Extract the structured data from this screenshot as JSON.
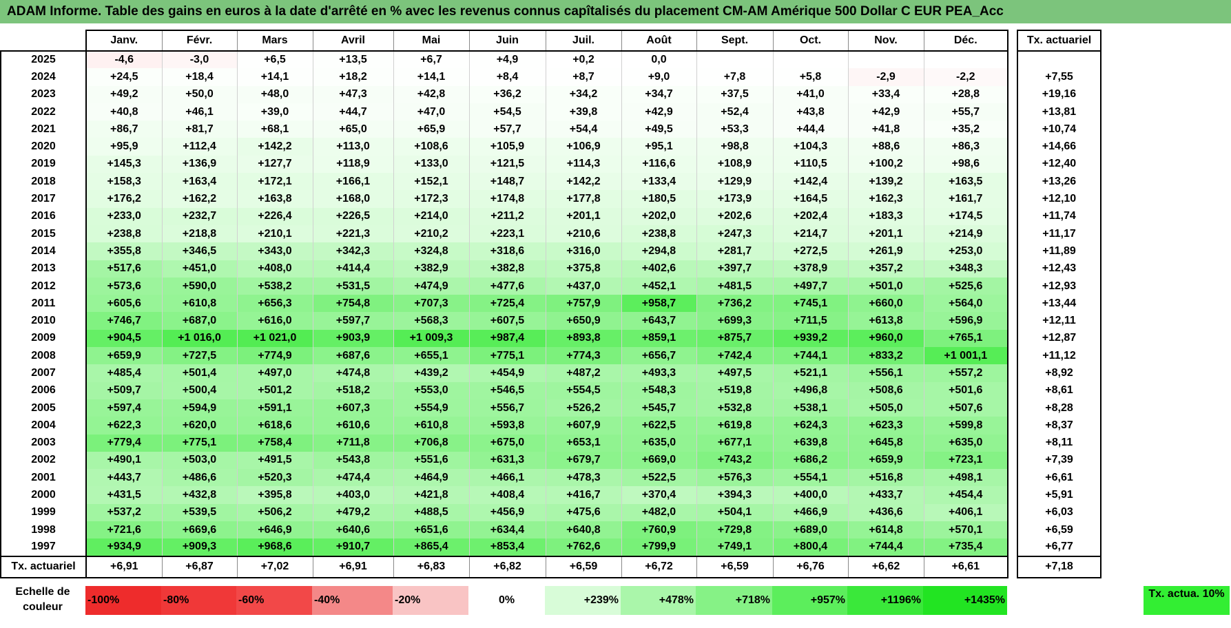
{
  "title": "ADAM Informe. Table des gains en euros à la date d'arrêté en % avec les revenus connus capîtalisés du placement CM-AM Amérique 500 Dollar C EUR PEA_Acc",
  "chart_data": {
    "type": "table",
    "columns": [
      "Janv.",
      "Févr.",
      "Mars",
      "Avril",
      "Mai",
      "Juin",
      "Juil.",
      "Août",
      "Sept.",
      "Oct.",
      "Nov.",
      "Déc."
    ],
    "actuarial_header": "Tx. actuariel",
    "rows": [
      {
        "year": "2025",
        "values": [
          "-4,6",
          "-3,0",
          "+6,5",
          "+13,5",
          "+6,7",
          "+4,9",
          "+0,2",
          "0,0",
          "",
          "",
          "",
          ""
        ],
        "actuarial": ""
      },
      {
        "year": "2024",
        "values": [
          "+24,5",
          "+18,4",
          "+14,1",
          "+18,2",
          "+14,1",
          "+8,4",
          "+8,7",
          "+9,0",
          "+7,8",
          "+5,8",
          "-2,9",
          "-2,2"
        ],
        "actuarial": "+7,55"
      },
      {
        "year": "2023",
        "values": [
          "+49,2",
          "+50,0",
          "+48,0",
          "+47,3",
          "+42,8",
          "+36,2",
          "+34,2",
          "+34,7",
          "+37,5",
          "+41,0",
          "+33,4",
          "+28,8"
        ],
        "actuarial": "+19,16"
      },
      {
        "year": "2022",
        "values": [
          "+40,8",
          "+46,1",
          "+39,0",
          "+44,7",
          "+47,0",
          "+54,5",
          "+39,8",
          "+42,9",
          "+52,4",
          "+43,8",
          "+42,9",
          "+55,7"
        ],
        "actuarial": "+13,81"
      },
      {
        "year": "2021",
        "values": [
          "+86,7",
          "+81,7",
          "+68,1",
          "+65,0",
          "+65,9",
          "+57,7",
          "+54,4",
          "+49,5",
          "+53,3",
          "+44,4",
          "+41,8",
          "+35,2"
        ],
        "actuarial": "+10,74"
      },
      {
        "year": "2020",
        "values": [
          "+95,9",
          "+112,4",
          "+142,2",
          "+113,0",
          "+108,6",
          "+105,9",
          "+106,9",
          "+95,1",
          "+98,8",
          "+104,3",
          "+88,6",
          "+86,3"
        ],
        "actuarial": "+14,66"
      },
      {
        "year": "2019",
        "values": [
          "+145,3",
          "+136,9",
          "+127,7",
          "+118,9",
          "+133,0",
          "+121,5",
          "+114,3",
          "+116,6",
          "+108,9",
          "+110,5",
          "+100,2",
          "+98,6"
        ],
        "actuarial": "+12,40"
      },
      {
        "year": "2018",
        "values": [
          "+158,3",
          "+163,4",
          "+172,1",
          "+166,1",
          "+152,1",
          "+148,7",
          "+142,2",
          "+133,4",
          "+129,9",
          "+142,4",
          "+139,2",
          "+163,5"
        ],
        "actuarial": "+13,26"
      },
      {
        "year": "2017",
        "values": [
          "+176,2",
          "+162,2",
          "+163,8",
          "+168,0",
          "+172,3",
          "+174,8",
          "+177,8",
          "+180,5",
          "+173,9",
          "+164,5",
          "+162,3",
          "+161,7"
        ],
        "actuarial": "+12,10"
      },
      {
        "year": "2016",
        "values": [
          "+233,0",
          "+232,7",
          "+226,4",
          "+226,5",
          "+214,0",
          "+211,2",
          "+201,1",
          "+202,0",
          "+202,6",
          "+202,4",
          "+183,3",
          "+174,5"
        ],
        "actuarial": "+11,74"
      },
      {
        "year": "2015",
        "values": [
          "+238,8",
          "+218,8",
          "+210,1",
          "+221,3",
          "+210,2",
          "+223,1",
          "+210,6",
          "+238,8",
          "+247,3",
          "+214,7",
          "+201,1",
          "+214,9"
        ],
        "actuarial": "+11,17"
      },
      {
        "year": "2014",
        "values": [
          "+355,8",
          "+346,5",
          "+343,0",
          "+342,3",
          "+324,8",
          "+318,6",
          "+316,0",
          "+294,8",
          "+281,7",
          "+272,5",
          "+261,9",
          "+253,0"
        ],
        "actuarial": "+11,89"
      },
      {
        "year": "2013",
        "values": [
          "+517,6",
          "+451,0",
          "+408,0",
          "+414,4",
          "+382,9",
          "+382,8",
          "+375,8",
          "+402,6",
          "+397,7",
          "+378,9",
          "+357,2",
          "+348,3"
        ],
        "actuarial": "+12,43"
      },
      {
        "year": "2012",
        "values": [
          "+573,6",
          "+590,0",
          "+538,2",
          "+531,5",
          "+474,9",
          "+477,6",
          "+437,0",
          "+452,1",
          "+481,5",
          "+497,7",
          "+501,0",
          "+525,6"
        ],
        "actuarial": "+12,93"
      },
      {
        "year": "2011",
        "values": [
          "+605,6",
          "+610,8",
          "+656,3",
          "+754,8",
          "+707,3",
          "+725,4",
          "+757,9",
          "+958,7",
          "+736,2",
          "+745,1",
          "+660,0",
          "+564,0"
        ],
        "actuarial": "+13,44"
      },
      {
        "year": "2010",
        "values": [
          "+746,7",
          "+687,0",
          "+616,0",
          "+597,7",
          "+568,3",
          "+607,5",
          "+650,9",
          "+643,7",
          "+699,3",
          "+711,5",
          "+613,8",
          "+596,9"
        ],
        "actuarial": "+12,11"
      },
      {
        "year": "2009",
        "values": [
          "+904,5",
          "+1 016,0",
          "+1 021,0",
          "+903,9",
          "+1 009,3",
          "+987,4",
          "+893,8",
          "+859,1",
          "+875,7",
          "+939,2",
          "+960,0",
          "+765,1"
        ],
        "actuarial": "+12,87"
      },
      {
        "year": "2008",
        "values": [
          "+659,9",
          "+727,5",
          "+774,9",
          "+687,6",
          "+655,1",
          "+775,1",
          "+774,3",
          "+656,7",
          "+742,4",
          "+744,1",
          "+833,2",
          "+1 001,1"
        ],
        "actuarial": "+11,12"
      },
      {
        "year": "2007",
        "values": [
          "+485,4",
          "+501,4",
          "+497,0",
          "+474,8",
          "+439,2",
          "+454,9",
          "+487,2",
          "+493,3",
          "+497,5",
          "+521,1",
          "+556,1",
          "+557,2"
        ],
        "actuarial": "+8,92"
      },
      {
        "year": "2006",
        "values": [
          "+509,7",
          "+500,4",
          "+501,2",
          "+518,2",
          "+553,0",
          "+546,5",
          "+554,5",
          "+548,3",
          "+519,8",
          "+496,8",
          "+508,6",
          "+501,6"
        ],
        "actuarial": "+8,61"
      },
      {
        "year": "2005",
        "values": [
          "+597,4",
          "+594,9",
          "+591,1",
          "+607,3",
          "+554,9",
          "+556,7",
          "+526,2",
          "+545,7",
          "+532,8",
          "+538,1",
          "+505,0",
          "+507,6"
        ],
        "actuarial": "+8,28"
      },
      {
        "year": "2004",
        "values": [
          "+622,3",
          "+620,0",
          "+618,6",
          "+610,6",
          "+610,8",
          "+593,8",
          "+607,9",
          "+622,5",
          "+619,8",
          "+624,3",
          "+623,3",
          "+599,8"
        ],
        "actuarial": "+8,37"
      },
      {
        "year": "2003",
        "values": [
          "+779,4",
          "+775,1",
          "+758,4",
          "+711,8",
          "+706,8",
          "+675,0",
          "+653,1",
          "+635,0",
          "+677,1",
          "+639,8",
          "+645,8",
          "+635,0"
        ],
        "actuarial": "+8,11"
      },
      {
        "year": "2002",
        "values": [
          "+490,1",
          "+503,0",
          "+491,5",
          "+543,8",
          "+551,6",
          "+631,3",
          "+679,7",
          "+669,0",
          "+743,2",
          "+686,2",
          "+659,9",
          "+723,1"
        ],
        "actuarial": "+7,39"
      },
      {
        "year": "2001",
        "values": [
          "+443,7",
          "+486,6",
          "+520,3",
          "+474,4",
          "+464,9",
          "+466,1",
          "+478,3",
          "+522,5",
          "+576,3",
          "+554,1",
          "+516,8",
          "+498,1"
        ],
        "actuarial": "+6,61"
      },
      {
        "year": "2000",
        "values": [
          "+431,5",
          "+432,8",
          "+395,8",
          "+403,0",
          "+421,8",
          "+408,4",
          "+416,7",
          "+370,4",
          "+394,3",
          "+400,0",
          "+433,7",
          "+454,4"
        ],
        "actuarial": "+5,91"
      },
      {
        "year": "1999",
        "values": [
          "+537,2",
          "+539,5",
          "+506,2",
          "+479,2",
          "+488,5",
          "+456,9",
          "+475,6",
          "+482,0",
          "+504,1",
          "+466,9",
          "+436,6",
          "+406,1"
        ],
        "actuarial": "+6,03"
      },
      {
        "year": "1998",
        "values": [
          "+721,6",
          "+669,6",
          "+646,9",
          "+640,6",
          "+651,6",
          "+634,4",
          "+640,8",
          "+760,9",
          "+729,8",
          "+689,0",
          "+614,8",
          "+570,1"
        ],
        "actuarial": "+6,59"
      },
      {
        "year": "1997",
        "values": [
          "+934,9",
          "+909,3",
          "+968,6",
          "+910,7",
          "+865,4",
          "+853,4",
          "+762,6",
          "+799,9",
          "+749,1",
          "+800,4",
          "+744,4",
          "+735,4"
        ],
        "actuarial": "+6,77"
      }
    ],
    "footer": {
      "label": "Tx. actuariel",
      "values": [
        "+6,91",
        "+6,87",
        "+7,02",
        "+6,91",
        "+6,83",
        "+6,82",
        "+6,59",
        "+6,72",
        "+6,59",
        "+6,76",
        "+6,62",
        "+6,61"
      ],
      "actuarial": "+7,18"
    },
    "color_scale": {
      "label": "Echelle de couleur",
      "steps": [
        {
          "label": "-100%",
          "value": -100,
          "color": "#ee2c2c"
        },
        {
          "label": "-80%",
          "value": -80,
          "color": "#f03838"
        },
        {
          "label": "-60%",
          "value": -60,
          "color": "#f24848"
        },
        {
          "label": "-40%",
          "value": -40,
          "color": "#f48888"
        },
        {
          "label": "-20%",
          "value": -20,
          "color": "#f9c4c4"
        },
        {
          "label": "0%",
          "value": 0,
          "color": "#ffffff"
        },
        {
          "label": "+239%",
          "value": 239,
          "color": "#d8fcd8"
        },
        {
          "label": "+478%",
          "value": 478,
          "color": "#aaf6aa"
        },
        {
          "label": "+718%",
          "value": 718,
          "color": "#86f286"
        },
        {
          "label": "+957%",
          "value": 957,
          "color": "#5cee5c"
        },
        {
          "label": "+1196%",
          "value": 1196,
          "color": "#3ae83a"
        },
        {
          "label": "+1435%",
          "value": 1435,
          "color": "#22e422"
        }
      ],
      "actuarial_label": "Tx. actua. 10%",
      "actuarial_color": "#33ee33"
    }
  }
}
